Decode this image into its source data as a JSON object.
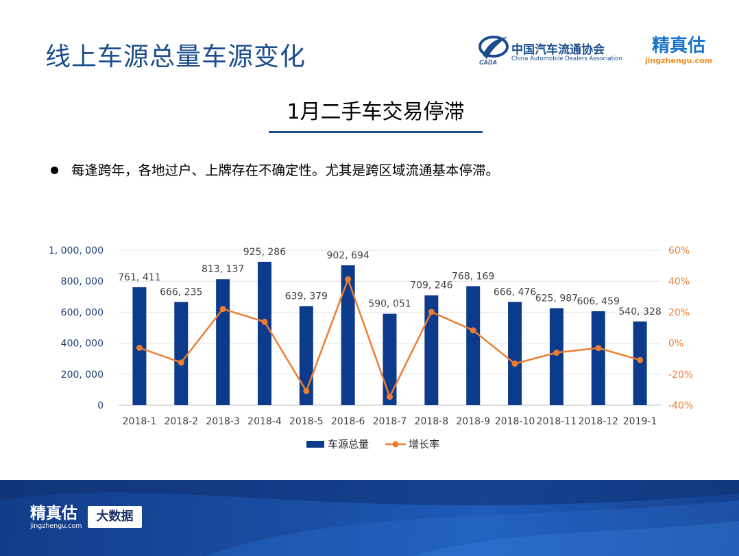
{
  "header": {
    "title": "线上车源总量车源变化",
    "association_cn": "中国汽车流通协会",
    "association_en": "China Automobile Dealers Association",
    "association_badge": "CADA",
    "brand_cn": "精真估",
    "brand_url": "jingzhengu.com"
  },
  "subtitle": "1月二手车交易停滞",
  "bullet": "每逢跨年，各地过户、上牌存在不确定性。尤其是跨区域流通基本停滞。",
  "chart_data": {
    "type": "bar+line",
    "categories": [
      "2018-1",
      "2018-2",
      "2018-3",
      "2018-4",
      "2018-5",
      "2018-6",
      "2018-7",
      "2018-8",
      "2018-9",
      "2018-10",
      "2018-11",
      "2018-12",
      "2019-1"
    ],
    "series": [
      {
        "name": "车源总量",
        "type": "bar",
        "axis": "left",
        "color": "#0d3b8c",
        "values": [
          761411,
          666235,
          813137,
          925286,
          639379,
          902694,
          590051,
          709246,
          768169,
          666476,
          625987,
          606459,
          540328
        ],
        "labels": [
          "761, 411",
          "666, 235",
          "813, 137",
          "925, 286",
          "639, 379",
          "902, 694",
          "590, 051",
          "709, 246",
          "768, 169",
          "666, 476",
          "625, 987",
          "606, 459",
          "540, 328"
        ]
      },
      {
        "name": "增长率",
        "type": "line",
        "axis": "right",
        "color": "#ed7d31",
        "values": [
          -3,
          -12.5,
          22.1,
          13.8,
          -30.9,
          41.2,
          -34.6,
          20.2,
          8.3,
          -13.2,
          -6.1,
          -3.1,
          -10.9
        ]
      }
    ],
    "left_axis": {
      "ylim": [
        0,
        1000000
      ],
      "ticks": [
        "0",
        "200, 000",
        "400, 000",
        "600, 000",
        "800, 000",
        "1, 000, 000"
      ]
    },
    "right_axis": {
      "ylim": [
        -40,
        60
      ],
      "ticks": [
        "-40%",
        "-20%",
        "0%",
        "20%",
        "40%",
        "60%"
      ]
    },
    "legend": [
      "车源总量",
      "增长率"
    ],
    "grid": true
  },
  "footer": {
    "brand_cn": "精真估",
    "brand_url": "jingzhengu.com",
    "badge": "大数据"
  }
}
